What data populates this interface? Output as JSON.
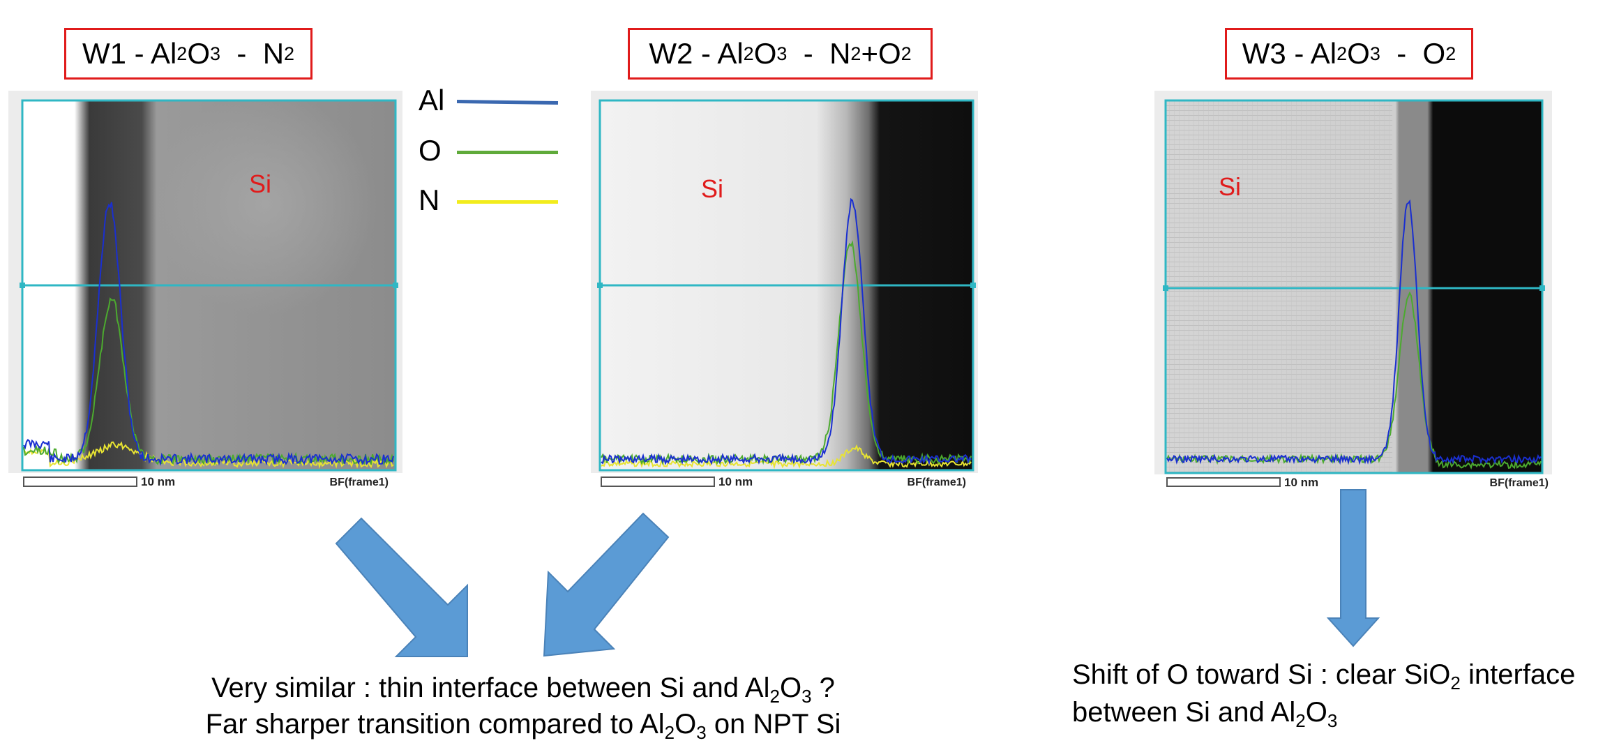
{
  "legend": {
    "items": [
      {
        "label": "Al",
        "color": "#3a68b0"
      },
      {
        "label": "O",
        "color": "#5faa3a"
      },
      {
        "label": "N",
        "color": "#f2ec1c"
      }
    ]
  },
  "panels": [
    {
      "title_parts": [
        "W1 - Al",
        "2",
        "O",
        "3",
        "  -  N",
        "2"
      ],
      "region_label": "Si",
      "scale_label": "10 nm",
      "frame_label": "BF(frame1)",
      "region_label_color": "#e01b1b"
    },
    {
      "title_parts": [
        "W2 - Al",
        "2",
        "O",
        "3",
        "  -  N",
        "2",
        "+O",
        "2"
      ],
      "region_label": "Si",
      "scale_label": "10 nm",
      "frame_label": "BF(frame1)",
      "region_label_color": "#e01b1b"
    },
    {
      "title_parts": [
        "W3 - Al",
        "2",
        "O",
        "3",
        "  -  O",
        "2"
      ],
      "region_label": "Si",
      "scale_label": "10 nm",
      "frame_label": "BF(frame1)",
      "region_label_color": "#e01b1b"
    }
  ],
  "captions": {
    "left_line1_parts": [
      "Very similar : thin interface between Si and Al",
      "2",
      "O",
      "3",
      " ?"
    ],
    "left_line2_parts": [
      "Far sharper transition compared to Al",
      "2",
      "O",
      "3",
      " on NPT Si"
    ],
    "right_line1_parts": [
      "Shift of O toward Si : clear SiO",
      "2",
      " interface"
    ],
    "right_line2_parts": [
      "between Si and Al",
      "2",
      "O",
      "3"
    ]
  },
  "colors": {
    "title_border": "#e01b1b",
    "arrow_fill": "#5b9bd5",
    "arrow_stroke": "#4a82b8",
    "profile_line": "#2fb7c4"
  }
}
